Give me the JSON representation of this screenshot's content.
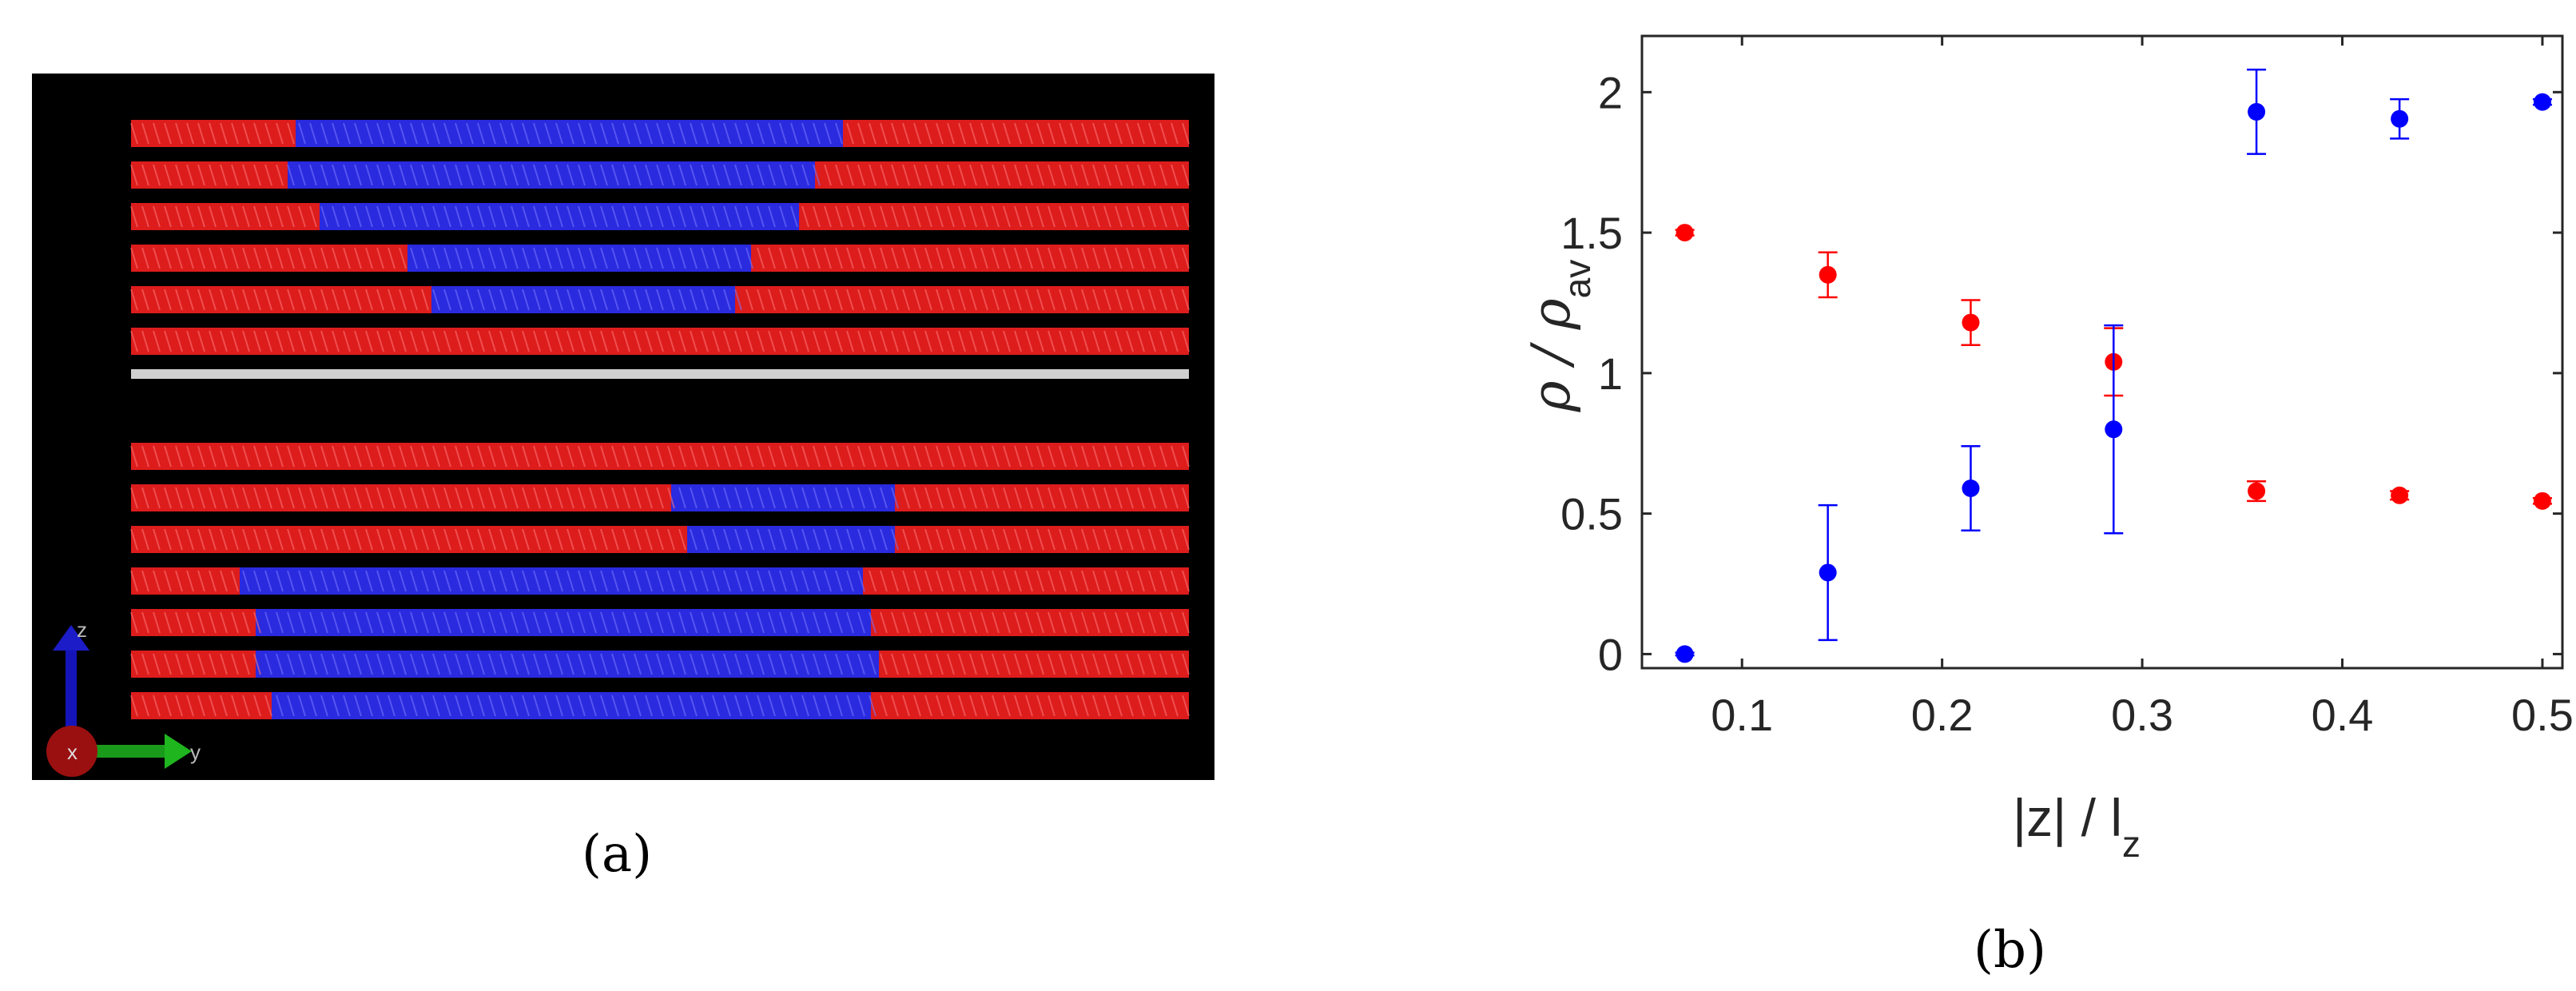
{
  "figure": {
    "panel_a": {
      "caption": "(a)",
      "axes_labels": {
        "z": "z",
        "x": "x",
        "y": "y"
      },
      "colors": {
        "background": "#000000",
        "phase_red": "#dd1c1c",
        "phase_blue": "#2a2adf",
        "interface": "#d0d0d0"
      }
    },
    "panel_b": {
      "caption": "(b)"
    }
  },
  "chart_data": {
    "type": "scatter",
    "xlabel": "|z| / l_z",
    "ylabel": "ρ / ρ_av",
    "xlim": [
      0.05,
      0.51
    ],
    "ylim": [
      -0.05,
      2.2
    ],
    "xticks": [
      0.1,
      0.2,
      0.3,
      0.4,
      0.5
    ],
    "yticks": [
      0,
      0.5,
      1,
      1.5,
      2
    ],
    "grid": false,
    "legend": "none",
    "series": [
      {
        "color": "#ff0000",
        "points": [
          {
            "x": 0.0714,
            "y": 1.5,
            "err": 0.01
          },
          {
            "x": 0.1429,
            "y": 1.35,
            "err": 0.08
          },
          {
            "x": 0.2143,
            "y": 1.18,
            "err": 0.08
          },
          {
            "x": 0.2857,
            "y": 1.04,
            "err": 0.12
          },
          {
            "x": 0.3571,
            "y": 0.58,
            "err": 0.035
          },
          {
            "x": 0.4286,
            "y": 0.565,
            "err": 0.015
          },
          {
            "x": 0.5,
            "y": 0.545,
            "err": 0.01
          }
        ]
      },
      {
        "color": "#0000ff",
        "points": [
          {
            "x": 0.0714,
            "y": 0.0,
            "err": 0.005
          },
          {
            "x": 0.1429,
            "y": 0.29,
            "err": 0.24
          },
          {
            "x": 0.2143,
            "y": 0.59,
            "err": 0.15
          },
          {
            "x": 0.2857,
            "y": 0.8,
            "err": 0.37
          },
          {
            "x": 0.3571,
            "y": 1.93,
            "err": 0.15
          },
          {
            "x": 0.4286,
            "y": 1.905,
            "err": 0.07
          },
          {
            "x": 0.5,
            "y": 1.965,
            "err": 0.01
          }
        ]
      }
    ]
  }
}
